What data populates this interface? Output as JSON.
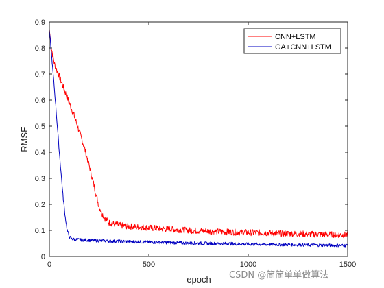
{
  "chart_data": {
    "type": "line",
    "title": "",
    "xlabel": "epoch",
    "ylabel": "RMSE",
    "xlim": [
      0,
      1500
    ],
    "ylim": [
      0,
      0.9
    ],
    "xticks": [
      0,
      500,
      1000,
      1500
    ],
    "yticks": [
      0,
      0.1,
      0.2,
      0.3,
      0.4,
      0.5,
      0.6,
      0.7,
      0.8,
      0.9
    ],
    "xtick_labels": [
      "0",
      "500",
      "1000",
      "1500"
    ],
    "ytick_labels": [
      "0",
      "0.1",
      "0.2",
      "0.3",
      "0.4",
      "0.5",
      "0.6",
      "0.7",
      "0.8",
      "0.9"
    ],
    "grid": false,
    "legend_position": "top-right",
    "series": [
      {
        "name": "CNN+LSTM",
        "color": "#ff0000",
        "x": [
          0,
          10,
          25,
          50,
          75,
          100,
          125,
          150,
          175,
          200,
          225,
          250,
          275,
          300,
          350,
          400,
          500,
          600,
          700,
          800,
          900,
          1000,
          1100,
          1200,
          1300,
          1400,
          1500
        ],
        "y": [
          0.87,
          0.8,
          0.74,
          0.69,
          0.64,
          0.59,
          0.54,
          0.48,
          0.42,
          0.35,
          0.27,
          0.19,
          0.15,
          0.13,
          0.12,
          0.115,
          0.11,
          0.105,
          0.1,
          0.097,
          0.094,
          0.092,
          0.09,
          0.088,
          0.086,
          0.084,
          0.083
        ]
      },
      {
        "name": "GA+CNN+LSTM",
        "color": "#0000c0",
        "x": [
          0,
          10,
          20,
          30,
          40,
          50,
          60,
          70,
          80,
          90,
          100,
          110,
          120,
          150,
          200,
          300,
          400,
          500,
          600,
          700,
          800,
          900,
          1000,
          1100,
          1200,
          1300,
          1400,
          1500
        ],
        "y": [
          0.87,
          0.78,
          0.69,
          0.6,
          0.5,
          0.4,
          0.31,
          0.22,
          0.15,
          0.1,
          0.076,
          0.068,
          0.066,
          0.064,
          0.062,
          0.059,
          0.057,
          0.055,
          0.053,
          0.051,
          0.05,
          0.049,
          0.047,
          0.046,
          0.045,
          0.044,
          0.043,
          0.042
        ]
      }
    ]
  },
  "watermark": "CSDN @简简单单做算法"
}
